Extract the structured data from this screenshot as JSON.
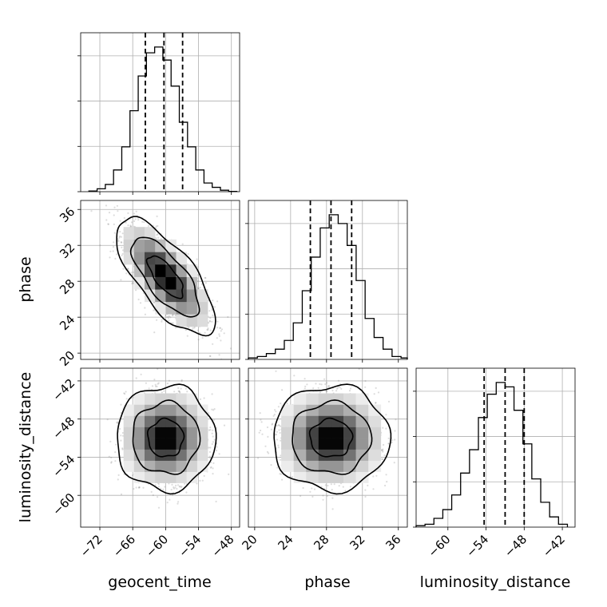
{
  "chart_data": {
    "type": "corner",
    "parameters": [
      "geocent_time",
      "phase",
      "luminosity_distance"
    ],
    "axis_labels": [
      "geocent_time",
      "phase",
      "luminosity_distance"
    ],
    "ranges": [
      [
        -75.5,
        -46.5
      ],
      [
        19.3,
        37.0
      ],
      [
        -65.0,
        -40.0
      ]
    ],
    "ticks": [
      [
        -72,
        -66,
        -60,
        -54,
        -48
      ],
      [
        20,
        24,
        28,
        32,
        36
      ],
      [
        -60,
        -54,
        -48,
        -42
      ]
    ],
    "tick_labels": [
      [
        "−72",
        "−66",
        "−60",
        "−54",
        "−48"
      ],
      [
        "20",
        "24",
        "28",
        "32",
        "36"
      ],
      [
        "−60",
        "−54",
        "−48",
        "−42"
      ]
    ],
    "quantiles": [
      [
        -63.7,
        -60.3,
        -56.9
      ],
      [
        26.2,
        28.5,
        30.8
      ],
      [
        -54.3,
        -51.0,
        -48.0
      ]
    ],
    "grid": true,
    "histograms": [
      {
        "parameter": "geocent_time",
        "bin_edges": [
          -74.0,
          -72.5,
          -71.0,
          -69.5,
          -68.0,
          -66.5,
          -65.0,
          -63.5,
          -62.0,
          -60.5,
          -59.0,
          -57.5,
          -56.0,
          -54.5,
          -53.0,
          -51.5,
          -50.0,
          -48.5,
          -47.0
        ],
        "counts": [
          0.005,
          0.02,
          0.05,
          0.15,
          0.31,
          0.56,
          0.8,
          0.96,
          1.0,
          0.91,
          0.73,
          0.48,
          0.31,
          0.15,
          0.06,
          0.03,
          0.01,
          0.002
        ]
      },
      {
        "parameter": "phase",
        "bin_edges": [
          19.3,
          20.3,
          21.3,
          22.3,
          23.3,
          24.3,
          25.3,
          26.3,
          27.3,
          28.3,
          29.3,
          30.3,
          31.3,
          32.3,
          33.3,
          34.3,
          35.3,
          36.3,
          37.0
        ],
        "counts": [
          0.01,
          0.02,
          0.04,
          0.07,
          0.13,
          0.25,
          0.47,
          0.7,
          0.9,
          0.99,
          0.93,
          0.78,
          0.54,
          0.28,
          0.15,
          0.07,
          0.02,
          0.01
        ]
      },
      {
        "parameter": "luminosity_distance",
        "bin_edges": [
          -65.0,
          -63.6,
          -62.2,
          -60.8,
          -59.4,
          -58.0,
          -56.6,
          -55.2,
          -53.8,
          -52.4,
          -51.0,
          -49.6,
          -48.2,
          -46.8,
          -45.4,
          -44.0,
          -42.6,
          -41.2
        ],
        "counts": [
          0.01,
          0.02,
          0.06,
          0.12,
          0.22,
          0.37,
          0.53,
          0.75,
          0.91,
          0.99,
          0.96,
          0.8,
          0.57,
          0.33,
          0.17,
          0.07,
          0.02
        ]
      }
    ],
    "pairs": [
      {
        "x": "geocent_time",
        "y": "phase",
        "mean": [
          -60.0,
          28.5
        ],
        "std": [
          3.6,
          2.6
        ],
        "correlation": -0.72
      },
      {
        "x": "geocent_time",
        "y": "luminosity_distance",
        "mean": [
          -60.0,
          -51.0
        ],
        "std": [
          3.6,
          3.3
        ],
        "correlation": 0.0
      },
      {
        "x": "phase",
        "y": "luminosity_distance",
        "mean": [
          28.5,
          -51.0
        ],
        "std": [
          2.6,
          3.3
        ],
        "correlation": 0.0
      }
    ]
  }
}
